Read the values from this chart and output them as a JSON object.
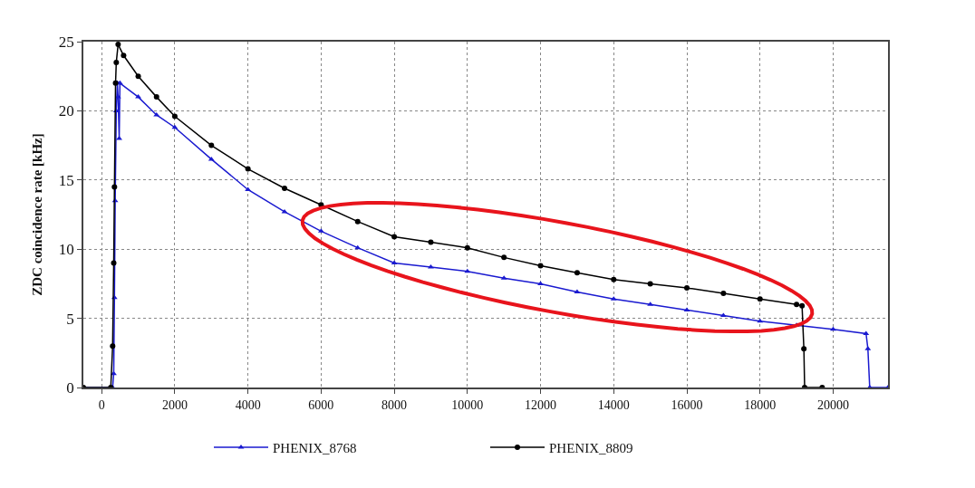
{
  "chart_data": {
    "type": "line",
    "ylabel": "ZDC coincidence rate [kHz]",
    "xlim": [
      -500,
      21500
    ],
    "xticks": [
      0,
      2000,
      4000,
      6000,
      8000,
      10000,
      12000,
      14000,
      16000,
      18000,
      20000
    ],
    "ylim": [
      0,
      25
    ],
    "yticks": [
      0,
      5,
      10,
      15,
      20,
      25
    ],
    "grid": true,
    "legend": "bottom",
    "series": [
      {
        "name": "PHENIX_8768",
        "color": "#1a1ad0",
        "marker": "triangle",
        "x": [
          -500,
          300,
          330,
          350,
          370,
          400,
          430,
          450,
          480,
          500,
          1000,
          1500,
          2000,
          3000,
          4000,
          5000,
          6000,
          7000,
          8000,
          9000,
          10000,
          11000,
          12000,
          13000,
          14000,
          15000,
          16000,
          17000,
          18000,
          19000,
          20000,
          20900,
          20950,
          21000,
          21500
        ],
        "values": [
          0,
          0,
          1,
          6.5,
          13.5,
          20,
          22,
          21,
          18,
          22,
          21,
          19.7,
          18.8,
          16.5,
          14.3,
          12.7,
          11.3,
          10.1,
          9.0,
          8.7,
          8.4,
          7.9,
          7.5,
          6.9,
          6.4,
          6.0,
          5.6,
          5.2,
          4.8,
          4.5,
          4.2,
          3.9,
          2.8,
          0,
          0
        ]
      },
      {
        "name": "PHENIX_8809",
        "color": "#000000",
        "marker": "circle",
        "x": [
          -500,
          250,
          300,
          330,
          350,
          380,
          400,
          450,
          600,
          1000,
          1500,
          2000,
          3000,
          4000,
          5000,
          6000,
          7000,
          8000,
          9000,
          10000,
          11000,
          12000,
          13000,
          14000,
          15000,
          16000,
          17000,
          18000,
          19000,
          19150,
          19200,
          19220,
          19700
        ],
        "values": [
          0,
          0,
          3,
          9,
          14.5,
          22,
          23.5,
          24.8,
          24,
          22.5,
          21,
          19.6,
          17.5,
          15.8,
          14.4,
          13.2,
          12,
          10.9,
          10.5,
          10.1,
          9.4,
          8.8,
          8.3,
          7.8,
          7.5,
          7.2,
          6.8,
          6.4,
          6.0,
          5.9,
          2.8,
          0,
          0
        ]
      }
    ]
  }
}
